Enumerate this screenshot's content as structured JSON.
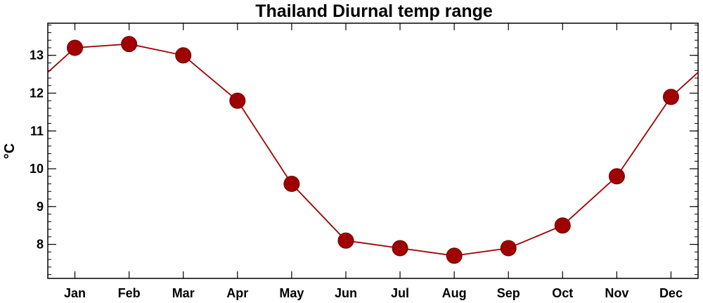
{
  "chart_data": {
    "type": "line",
    "title": "Thailand Diurnal temp range",
    "xlabel": "",
    "ylabel": "°C",
    "categories": [
      "Jan",
      "Feb",
      "Mar",
      "Apr",
      "May",
      "Jun",
      "Jul",
      "Aug",
      "Sep",
      "Oct",
      "Nov",
      "Dec"
    ],
    "series": [
      {
        "values": [
          13.2,
          13.3,
          13.0,
          11.8,
          9.6,
          8.1,
          7.9,
          7.7,
          7.9,
          8.5,
          9.8,
          11.9
        ]
      }
    ],
    "ylim": [
      7.1,
      13.85
    ],
    "yticks": [
      8,
      9,
      10,
      11,
      12,
      13
    ],
    "grid": false,
    "legend": "none",
    "line_wraps_cyclically": true,
    "colors": {
      "series": "#a00000",
      "axis": "#000000"
    }
  }
}
